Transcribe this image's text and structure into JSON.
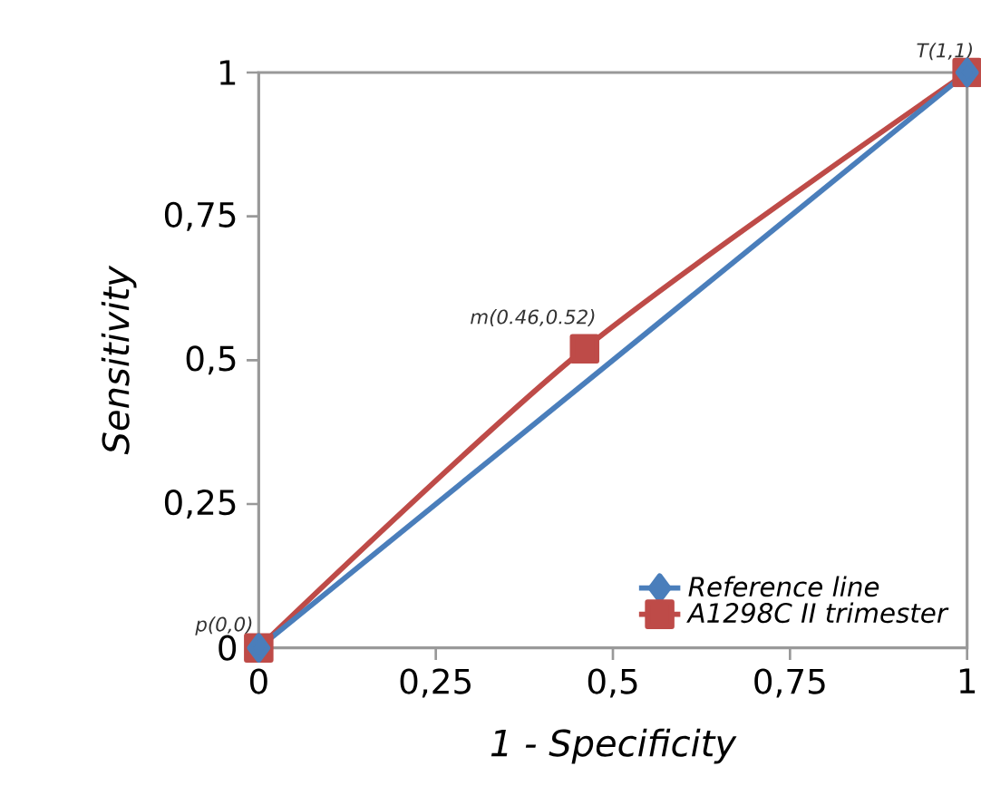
{
  "chart_data": {
    "type": "line",
    "xlabel": "1 - Specificity",
    "ylabel": "Sensitivity",
    "series": [
      {
        "name": "Reference line",
        "color": "#4a7ebb",
        "marker": "diamond",
        "x": [
          0,
          1
        ],
        "values": [
          0,
          1
        ]
      },
      {
        "name": "A1298C II trimester",
        "color": "#be4b48",
        "marker": "square",
        "x": [
          0,
          0.46,
          1
        ],
        "values": [
          0,
          0.52,
          1
        ]
      }
    ],
    "xlim": [
      0,
      1
    ],
    "ylim": [
      0,
      1
    ],
    "xticks": [
      0,
      {
        "value": 0.25,
        "label": "0,25"
      },
      {
        "value": 0.5,
        "label": "0,5"
      },
      {
        "value": 0.75,
        "label": "0,75"
      },
      1
    ],
    "yticks": [
      0,
      {
        "value": 0.25,
        "label": "0,25"
      },
      {
        "value": 0.5,
        "label": "0,5"
      },
      {
        "value": 0.75,
        "label": "0,75"
      },
      1
    ],
    "annotations": [
      {
        "text": "p(0,0)",
        "x": 0,
        "y": 0
      },
      {
        "text": "m(0.46,0.52)",
        "x": 0.46,
        "y": 0.52
      },
      {
        "text": "T(1,1)",
        "x": 1,
        "y": 1
      }
    ],
    "legend": "bottom right",
    "grid": false
  }
}
